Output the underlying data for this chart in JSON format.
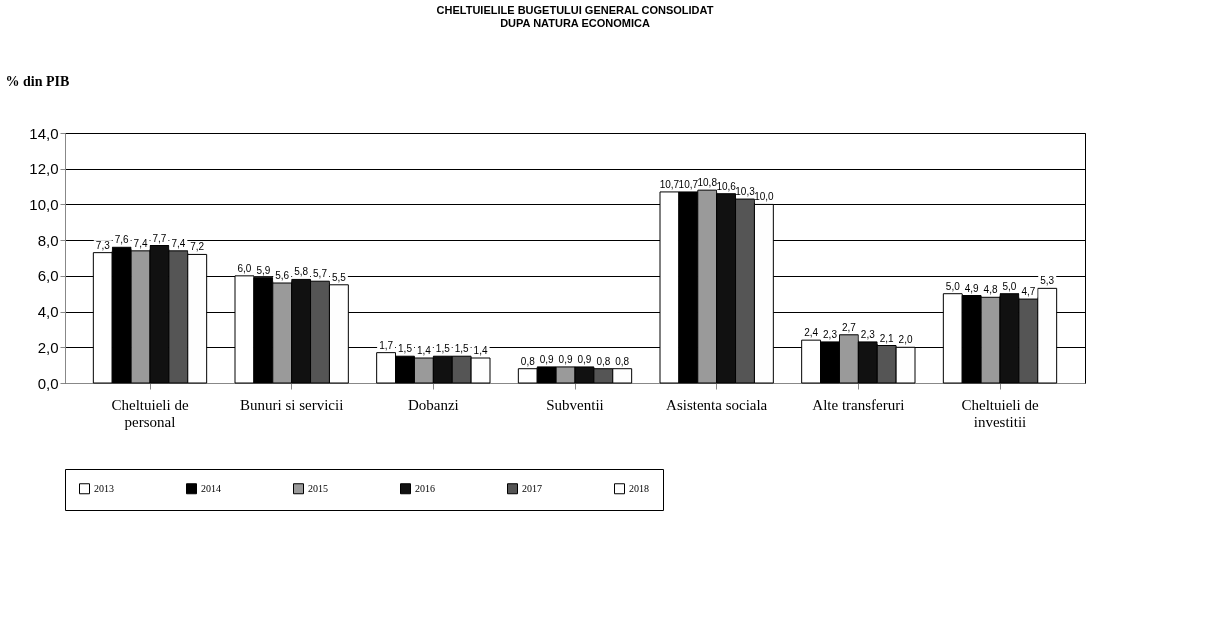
{
  "chart_data": {
    "type": "bar",
    "title": "CHELTUIELILE BUGETULUI GENERAL CONSOLIDAT\nDUPA NATURA ECONOMICA",
    "ylabel": "% din PIB",
    "categories": [
      "Cheltuieli de personal",
      "Bunuri si servicii",
      "Dobanzi",
      "Subventii",
      "Asistenta sociala",
      "Alte transferuri",
      "Cheltuieli de investitii"
    ],
    "series": [
      {
        "name": "2013",
        "color": "#ffffff",
        "values": [
          7.3,
          6.0,
          1.7,
          0.8,
          10.7,
          2.4,
          5.0
        ],
        "value_labels": [
          "7,3",
          "6,0",
          "1,7",
          "0,8",
          "10,7",
          "2,4",
          "5,0"
        ]
      },
      {
        "name": "2014",
        "color": "#000000",
        "values": [
          7.6,
          5.9,
          1.5,
          0.9,
          10.7,
          2.3,
          4.9
        ],
        "value_labels": [
          "7,6",
          "5,9",
          "1,5",
          "0,9",
          "10,7",
          "2,3",
          "4,9"
        ]
      },
      {
        "name": "2015",
        "color": "#9a9a9a",
        "values": [
          7.4,
          5.6,
          1.4,
          0.9,
          10.8,
          2.7,
          4.8
        ],
        "value_labels": [
          "7,4",
          "5,6",
          "1,4",
          "0,9",
          "10,8",
          "2,7",
          "4,8"
        ]
      },
      {
        "name": "2016",
        "color": "#111111",
        "values": [
          7.7,
          5.8,
          1.5,
          0.9,
          10.6,
          2.3,
          5.0
        ],
        "value_labels": [
          "7,7",
          "5,8",
          "1,5",
          "0,9",
          "10,6",
          "2,3",
          "5,0"
        ]
      },
      {
        "name": "2017",
        "color": "#555555",
        "values": [
          7.4,
          5.7,
          1.5,
          0.8,
          10.3,
          2.1,
          4.7
        ],
        "value_labels": [
          "7,4",
          "5,7",
          "1,5",
          "0,8",
          "10,3",
          "2,1",
          "4,7"
        ]
      },
      {
        "name": "2018",
        "color": "#fefefe",
        "values": [
          7.2,
          5.5,
          1.4,
          0.8,
          10.0,
          2.0,
          5.3
        ],
        "value_labels": [
          "7,2",
          "5,5",
          "1,4",
          "0,8",
          "10,0",
          "2,0",
          "5,3"
        ]
      }
    ],
    "ylim": [
      0,
      14
    ],
    "yticks": [
      {
        "value": 0,
        "label": "0,0"
      },
      {
        "value": 2,
        "label": "2,0"
      },
      {
        "value": 4,
        "label": "4,0"
      },
      {
        "value": 6,
        "label": "6,0"
      },
      {
        "value": 8,
        "label": "8,0"
      },
      {
        "value": 10,
        "label": "10,0"
      },
      {
        "value": 12,
        "label": "12,0"
      },
      {
        "value": 14,
        "label": "14,0"
      }
    ],
    "grid": "y",
    "legend": "bottom"
  }
}
